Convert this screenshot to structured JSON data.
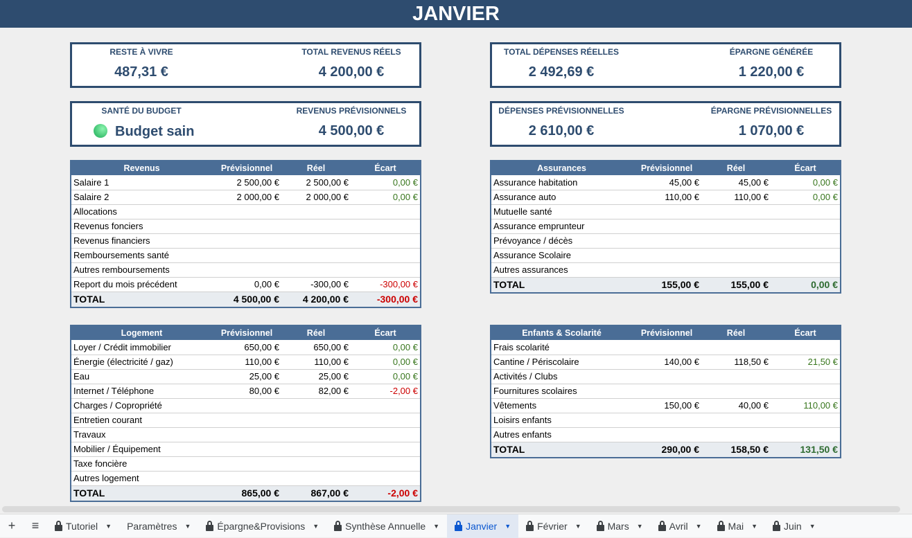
{
  "title": "JANVIER",
  "cards": {
    "reste_a_vivre": {
      "label": "RESTE À VIVRE",
      "value": "487,31 €"
    },
    "total_revenus_reels": {
      "label": "TOTAL REVENUS RÉELS",
      "value": "4 200,00 €"
    },
    "total_depenses_reelles": {
      "label": "TOTAL DÉPENSES RÉELLES",
      "value": "2 492,69 €"
    },
    "epargne_generee": {
      "label": "ÉPARGNE GÉNÉRÉE",
      "value": "1 220,00 €"
    },
    "sante_budget": {
      "label": "SANTÉ DU BUDGET",
      "value": "Budget sain",
      "indicator_color": "#3bbf6e"
    },
    "revenus_previsionnels": {
      "label": "REVENUS PRÉVISIONNELS",
      "value": "4 500,00 €"
    },
    "depenses_previsionnelles": {
      "label": "DÉPENSES PRÉVISIONNELLES",
      "value": "2 610,00 €"
    },
    "epargne_previsionnelle": {
      "label": "ÉPARGNE PRÉVISIONNELLES",
      "value": "1 070,00 €"
    }
  },
  "tables": {
    "revenus": {
      "headers": [
        "Revenus",
        "Prévisionnel",
        "Réel",
        "Écart"
      ],
      "rows": [
        [
          "Salaire 1",
          "2 500,00 €",
          "2 500,00 €",
          "0,00 €"
        ],
        [
          "Salaire 2",
          "2 000,00 €",
          "2 000,00 €",
          "0,00 €"
        ],
        [
          "Allocations",
          "",
          "",
          ""
        ],
        [
          "Revenus fonciers",
          "",
          "",
          ""
        ],
        [
          "Revenus financiers",
          "",
          "",
          ""
        ],
        [
          "Remboursements santé",
          "",
          "",
          ""
        ],
        [
          "Autres remboursements",
          "",
          "",
          ""
        ],
        [
          "Report du mois précédent",
          "0,00 €",
          "-300,00 €",
          "-300,00 €"
        ]
      ],
      "total": [
        "TOTAL",
        "4 500,00 €",
        "4 200,00 €",
        "-300,00 €"
      ]
    },
    "logement": {
      "headers": [
        "Logement",
        "Prévisionnel",
        "Réel",
        "Écart"
      ],
      "rows": [
        [
          "Loyer / Crédit immobilier",
          "650,00 €",
          "650,00 €",
          "0,00 €"
        ],
        [
          "Énergie (électricité / gaz)",
          "110,00 €",
          "110,00 €",
          "0,00 €"
        ],
        [
          "Eau",
          "25,00 €",
          "25,00 €",
          "0,00 €"
        ],
        [
          "Internet / Téléphone",
          "80,00 €",
          "82,00 €",
          "-2,00 €"
        ],
        [
          "Charges / Copropriété",
          "",
          "",
          ""
        ],
        [
          "Entretien courant",
          "",
          "",
          ""
        ],
        [
          "Travaux",
          "",
          "",
          ""
        ],
        [
          "Mobilier / Équipement",
          "",
          "",
          ""
        ],
        [
          "Taxe foncière",
          "",
          "",
          ""
        ],
        [
          "Autres logement",
          "",
          "",
          ""
        ]
      ],
      "total": [
        "TOTAL",
        "865,00 €",
        "867,00 €",
        "-2,00 €"
      ]
    },
    "assurances": {
      "headers": [
        "Assurances",
        "Prévisionnel",
        "Réel",
        "Écart"
      ],
      "rows": [
        [
          "Assurance habitation",
          "45,00 €",
          "45,00 €",
          "0,00 €"
        ],
        [
          "Assurance auto",
          "110,00 €",
          "110,00 €",
          "0,00 €"
        ],
        [
          "Mutuelle santé",
          "",
          "",
          ""
        ],
        [
          "Assurance emprunteur",
          "",
          "",
          ""
        ],
        [
          "Prévoyance / décès",
          "",
          "",
          ""
        ],
        [
          "Assurance Scolaire",
          "",
          "",
          ""
        ],
        [
          "Autres assurances",
          "",
          "",
          ""
        ]
      ],
      "total": [
        "TOTAL",
        "155,00 €",
        "155,00 €",
        "0,00 €"
      ]
    },
    "enfants": {
      "headers": [
        "Enfants & Scolarité",
        "Prévisionnel",
        "Réel",
        "Écart"
      ],
      "rows": [
        [
          "Frais scolarité",
          "",
          "",
          ""
        ],
        [
          "Cantine / Périscolaire",
          "140,00 €",
          "118,50 €",
          "21,50 €"
        ],
        [
          "Activités / Clubs",
          "",
          "",
          ""
        ],
        [
          "Fournitures scolaires",
          "",
          "",
          ""
        ],
        [
          "Vêtements",
          "150,00 €",
          "40,00 €",
          "110,00 €"
        ],
        [
          "Loisirs enfants",
          "",
          "",
          ""
        ],
        [
          "Autres enfants",
          "",
          "",
          ""
        ]
      ],
      "total": [
        "TOTAL",
        "290,00 €",
        "158,50 €",
        "131,50 €"
      ]
    }
  },
  "sheet_tabs": [
    {
      "label": "Tutoriel",
      "locked": true
    },
    {
      "label": "Paramètres",
      "locked": false
    },
    {
      "label": "Épargne&Provisions",
      "locked": true
    },
    {
      "label": "Synthèse Annuelle",
      "locked": true
    },
    {
      "label": "Janvier",
      "locked": true,
      "active": true
    },
    {
      "label": "Février",
      "locked": true
    },
    {
      "label": "Mars",
      "locked": true
    },
    {
      "label": "Avril",
      "locked": true
    },
    {
      "label": "Mai",
      "locked": true
    },
    {
      "label": "Juin",
      "locked": true
    }
  ],
  "toolbar": {
    "add": "+",
    "all_sheets": "≡"
  }
}
